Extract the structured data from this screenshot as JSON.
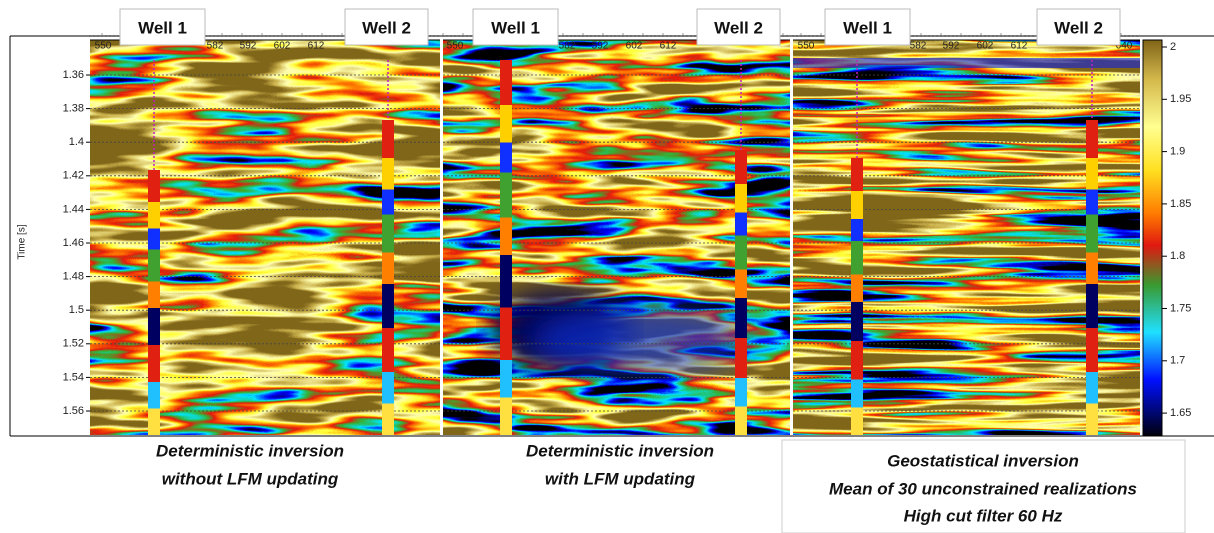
{
  "panels": [
    {
      "wells": [
        "Well 1",
        "Well 2"
      ],
      "x_labels": [
        "550",
        "582",
        "592",
        "602",
        "612"
      ],
      "caption": [
        "Deterministic inversion",
        "without LFM updating"
      ]
    },
    {
      "wells": [
        "Well 1",
        "Well 2"
      ],
      "x_labels": [
        "550",
        "582",
        "592",
        "602",
        "612"
      ],
      "caption": [
        "Deterministic inversion",
        "with LFM updating"
      ]
    },
    {
      "wells": [
        "Well 1",
        "Well 2"
      ],
      "x_labels": [
        "550",
        "582",
        "592",
        "602",
        "612",
        "640"
      ],
      "caption": [
        "Geostatistical inversion",
        "Mean of 30 unconstrained realizations",
        "High cut filter 60 Hz"
      ]
    }
  ],
  "y_axis": {
    "label": "Time [s]",
    "ticks": [
      "1.36",
      "1.38",
      "1.4",
      "1.42",
      "1.44",
      "1.46",
      "1.48",
      "1.5",
      "1.52",
      "1.54",
      "1.56"
    ]
  },
  "colorbar": {
    "ticks": [
      "2",
      "1.95",
      "1.9",
      "1.85",
      "1.8",
      "1.75",
      "1.7",
      "1.65"
    ]
  }
}
